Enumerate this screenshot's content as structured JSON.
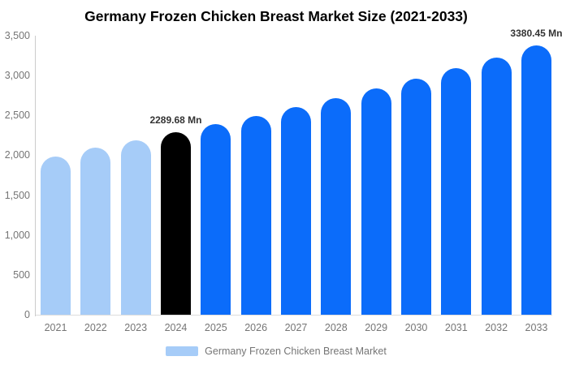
{
  "title": "Germany Frozen Chicken Breast Market Size (2021-2033)",
  "legend": {
    "label": "Germany Frozen Chicken Breast Market",
    "swatch_color": "#a6ccf8"
  },
  "colors": {
    "historical_bar": "#a6ccf8",
    "base_year_bar": "#000000",
    "forecast_bar": "#0b6cfa",
    "axis_line": "#cccccc",
    "baseline": "#dddddd",
    "tick_text": "#757575",
    "annotation_text": "#333333",
    "title_text": "#000000",
    "background": "#ffffff"
  },
  "y_axis": {
    "tick_labels": [
      "3,500",
      "3,000",
      "2,500",
      "2,000",
      "1,500",
      "1,000",
      "500",
      "0"
    ]
  },
  "chart_data": {
    "type": "bar",
    "title": "Germany Frozen Chicken Breast Market Size (2021-2033)",
    "unit": "Mn",
    "categories": [
      "2021",
      "2022",
      "2023",
      "2024",
      "2025",
      "2026",
      "2027",
      "2028",
      "2029",
      "2030",
      "2031",
      "2032",
      "2033"
    ],
    "values": [
      1985,
      2100,
      2185,
      2289.68,
      2392,
      2497,
      2600,
      2715,
      2840,
      2960,
      3090,
      3230,
      3380.45
    ],
    "bar_colors": [
      "#a6ccf8",
      "#a6ccf8",
      "#a6ccf8",
      "#000000",
      "#0b6cfa",
      "#0b6cfa",
      "#0b6cfa",
      "#0b6cfa",
      "#0b6cfa",
      "#0b6cfa",
      "#0b6cfa",
      "#0b6cfa",
      "#0b6cfa"
    ],
    "annotations": [
      {
        "category": "2024",
        "label": "2289.68 Mn"
      },
      {
        "category": "2033",
        "label": "3380.45 Mn"
      }
    ],
    "xlabel": "",
    "ylabel": "",
    "ylim": [
      0,
      3500
    ],
    "grid": false,
    "legend_position": "bottom"
  }
}
